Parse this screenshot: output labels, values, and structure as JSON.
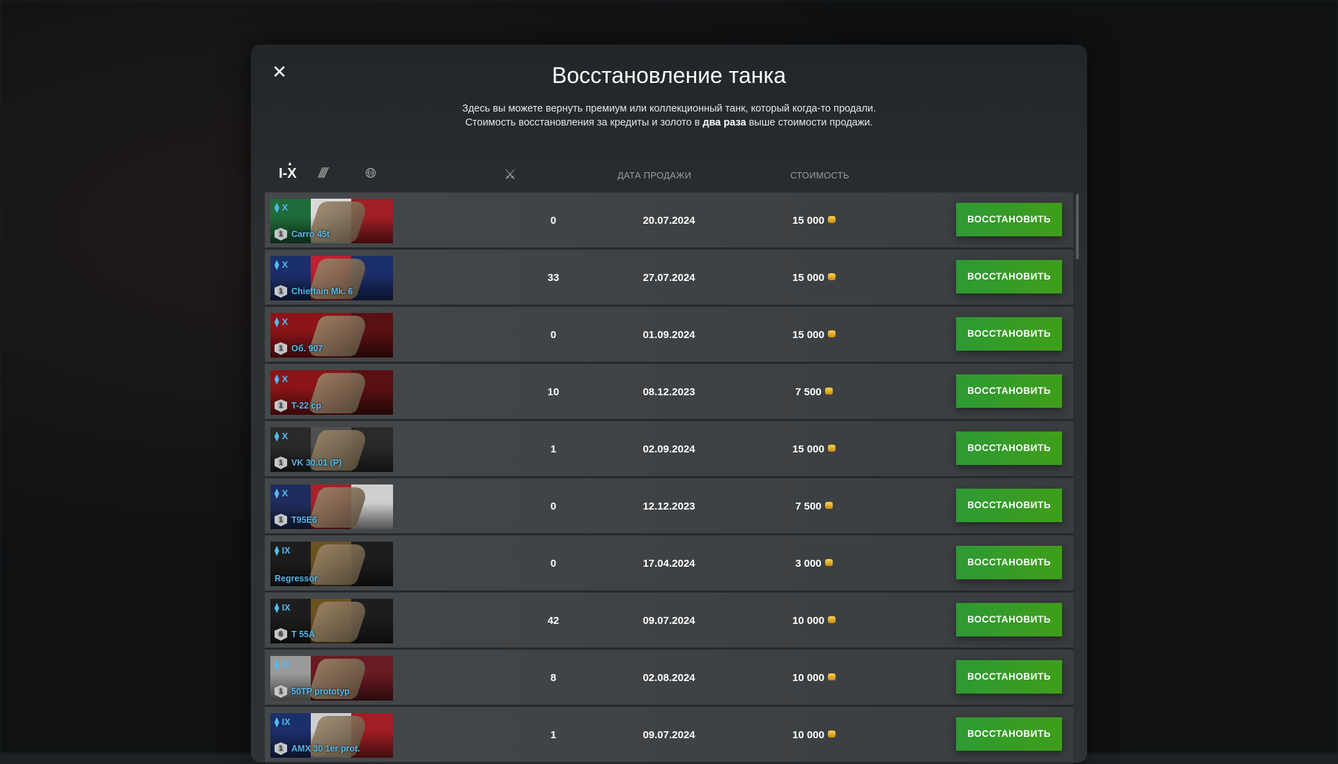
{
  "title": "Восстановление танка",
  "subtitle": {
    "line1": "Здесь вы можете вернуть премиум или коллекционный танк, который когда-то продали.",
    "line2_pre": "Стоимость восстановления за кредиты и золото в ",
    "line2_bold": "два раза",
    "line2_post": " выше стоимости продажи."
  },
  "filters": {
    "tier_label": "I-X",
    "nation_icon": "nation-icon",
    "globe_icon": "globe-icon"
  },
  "columns": {
    "battles_icon": "crossed-swords-icon",
    "date": "ДАТА ПРОДАЖИ",
    "cost": "СТОИМОСТЬ"
  },
  "button_label": "ВОССТАНОВИТЬ",
  "colors": {
    "accent": "#54b9f0",
    "button": "#339a2c",
    "gold": "#f2c23a"
  },
  "rows": [
    {
      "tier": "X",
      "mastery": "1",
      "name": "Carro 45t",
      "battles": "0",
      "date": "20.07.2024",
      "cost": "15 000",
      "flag": [
        "#1f6b3a",
        "#d9d9d9",
        "#a01e24"
      ]
    },
    {
      "tier": "X",
      "mastery": "1",
      "name": "Chieftain Mk. 6",
      "battles": "33",
      "date": "27.07.2024",
      "cost": "15 000",
      "flag": [
        "#1b2f6a",
        "#c02030",
        "#1b2f6a"
      ]
    },
    {
      "tier": "X",
      "mastery": "1",
      "name": "Об. 907",
      "battles": "0",
      "date": "01.09.2024",
      "cost": "15 000",
      "flag": [
        "#8a1418",
        "#8a1418",
        "#5a1012"
      ]
    },
    {
      "tier": "X",
      "mastery": "1",
      "name": "T-22 ср.",
      "battles": "10",
      "date": "08.12.2023",
      "cost": "7 500",
      "flag": [
        "#8a1418",
        "#8a1418",
        "#5a1012"
      ]
    },
    {
      "tier": "X",
      "mastery": "1",
      "name": "VK 30.01 (P)",
      "battles": "1",
      "date": "02.09.2024",
      "cost": "15 000",
      "flag": [
        "#2a2a2a",
        "#505050",
        "#2a2a2a"
      ]
    },
    {
      "tier": "X",
      "mastery": "1",
      "name": "T95E6",
      "battles": "0",
      "date": "12.12.2023",
      "cost": "7 500",
      "flag": [
        "#1f2d5e",
        "#a8202c",
        "#cfcfcf"
      ]
    },
    {
      "tier": "IX",
      "mastery": "",
      "name": "Regressor",
      "battles": "0",
      "date": "17.04.2024",
      "cost": "3 000",
      "flag": [
        "#1d1d1d",
        "#6b5320",
        "#1d1d1d"
      ]
    },
    {
      "tier": "IX",
      "mastery": "6",
      "name": "T 55A",
      "battles": "42",
      "date": "09.07.2024",
      "cost": "10 000",
      "flag": [
        "#1d1d1d",
        "#6b5320",
        "#1d1d1d"
      ]
    },
    {
      "tier": "IX",
      "mastery": "1",
      "name": "50TP prototyp",
      "battles": "8",
      "date": "02.08.2024",
      "cost": "10 000",
      "flag": [
        "#9a9a9a",
        "#6a1a22",
        "#6a1a22"
      ]
    },
    {
      "tier": "IX",
      "mastery": "1",
      "name": "AMX 30 1er prot.",
      "battles": "1",
      "date": "09.07.2024",
      "cost": "10 000",
      "flag": [
        "#1b2f6a",
        "#cfcfcf",
        "#a01e24"
      ]
    }
  ]
}
